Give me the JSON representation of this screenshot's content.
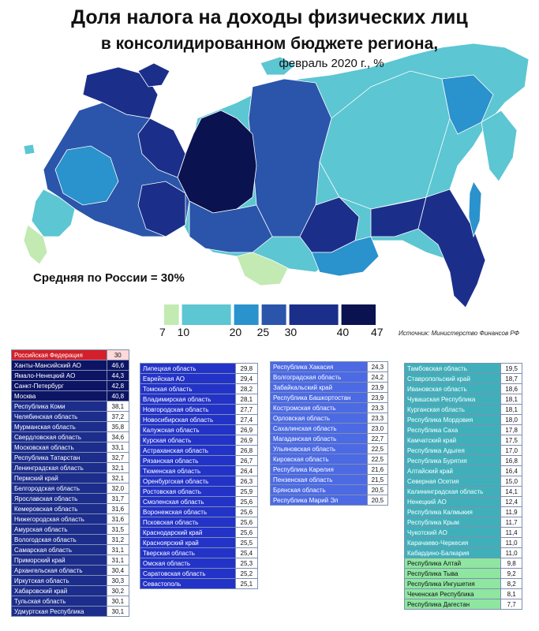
{
  "title": {
    "line1": "Доля налога на доходы физических лиц",
    "line2": "в консолидированном бюджете региона,",
    "line3": "февраль 2020 г., %"
  },
  "average_label": "Средняя по России = 30%",
  "source": "Источник: Министерство Финансов РФ",
  "legend": {
    "bins": [
      {
        "from": 7,
        "to": 10,
        "color": "#c2eab2"
      },
      {
        "from": 10,
        "to": 20,
        "color": "#5cc6d2"
      },
      {
        "from": 20,
        "to": 25,
        "color": "#2a92cc"
      },
      {
        "from": 25,
        "to": 30,
        "color": "#2a55aa"
      },
      {
        "from": 30,
        "to": 40,
        "color": "#1b2f8a"
      },
      {
        "from": 40,
        "to": 47,
        "color": "#0b1250"
      }
    ],
    "labels": [
      "7",
      "10",
      "20",
      "25",
      "30",
      "40",
      "47"
    ]
  },
  "map_colors": {
    "land_light": "#c2eab2",
    "land_mid": "#5cc6d2",
    "land_blue": "#2a92cc",
    "land_steel": "#2a55aa",
    "land_dark": "#1b2f8a",
    "land_darkest": "#0b1250"
  },
  "tables": [
    {
      "header": {
        "name": "Российская Федерация",
        "value": "30"
      },
      "rows": [
        {
          "name": "Ханты-Мансийский АО",
          "value": "46,6",
          "cls": "r-a"
        },
        {
          "name": "Ямало-Ненецкий АО",
          "value": "44,3",
          "cls": "r-a"
        },
        {
          "name": "Санкт-Петербург",
          "value": "42,8",
          "cls": "r-a"
        },
        {
          "name": "Москва",
          "value": "40,8",
          "cls": "r-a"
        },
        {
          "name": "Республика Коми",
          "value": "38,1",
          "cls": "r-b"
        },
        {
          "name": "Челябинская область",
          "value": "37,2",
          "cls": "r-b"
        },
        {
          "name": "Мурманская область",
          "value": "35,8",
          "cls": "r-b"
        },
        {
          "name": "Свердловская область",
          "value": "34,6",
          "cls": "r-b"
        },
        {
          "name": "Московская область",
          "value": "33,1",
          "cls": "r-b"
        },
        {
          "name": "Республика Татарстан",
          "value": "32,7",
          "cls": "r-b"
        },
        {
          "name": "Ленинградская область",
          "value": "32,1",
          "cls": "r-b"
        },
        {
          "name": "Пермский край",
          "value": "32,1",
          "cls": "r-b"
        },
        {
          "name": "Белгородская область",
          "value": "32,0",
          "cls": "r-b"
        },
        {
          "name": "Ярославская область",
          "value": "31,7",
          "cls": "r-b"
        },
        {
          "name": "Кемеровская область",
          "value": "31,6",
          "cls": "r-b"
        },
        {
          "name": "Нижегородская область",
          "value": "31,6",
          "cls": "r-b"
        },
        {
          "name": "Амурская область",
          "value": "31,5",
          "cls": "r-b"
        },
        {
          "name": "Вологодская область",
          "value": "31,2",
          "cls": "r-b"
        },
        {
          "name": "Самарская область",
          "value": "31,1",
          "cls": "r-b"
        },
        {
          "name": "Приморский край",
          "value": "31,1",
          "cls": "r-b"
        },
        {
          "name": "Архангельская область",
          "value": "30,4",
          "cls": "r-b"
        },
        {
          "name": "Иркутская область",
          "value": "30,3",
          "cls": "r-b"
        },
        {
          "name": "Хабаровский край",
          "value": "30,2",
          "cls": "r-b"
        },
        {
          "name": "Тульская область",
          "value": "30,1",
          "cls": "r-b"
        },
        {
          "name": "Удмуртская Республика",
          "value": "30,1",
          "cls": "r-b"
        }
      ]
    },
    {
      "rows": [
        {
          "name": "Липецкая область",
          "value": "29,8",
          "cls": "r-c"
        },
        {
          "name": "Еврейская АО",
          "value": "29,4",
          "cls": "r-c"
        },
        {
          "name": "Томская область",
          "value": "28,2",
          "cls": "r-c"
        },
        {
          "name": "Владимирская область",
          "value": "28,1",
          "cls": "r-c"
        },
        {
          "name": "Новгородская область",
          "value": "27,7",
          "cls": "r-c"
        },
        {
          "name": "Новосибирская область",
          "value": "27,4",
          "cls": "r-c"
        },
        {
          "name": "Калужская область",
          "value": "26,9",
          "cls": "r-c"
        },
        {
          "name": "Курская область",
          "value": "26,9",
          "cls": "r-c"
        },
        {
          "name": "Астраханская область",
          "value": "26,8",
          "cls": "r-c"
        },
        {
          "name": "Рязанская область",
          "value": "26,7",
          "cls": "r-c"
        },
        {
          "name": "Тюменская область",
          "value": "26,4",
          "cls": "r-c"
        },
        {
          "name": "Оренбургская область",
          "value": "26,3",
          "cls": "r-c"
        },
        {
          "name": "Ростовская область",
          "value": "25,9",
          "cls": "r-c"
        },
        {
          "name": "Смоленская область",
          "value": "25,6",
          "cls": "r-c"
        },
        {
          "name": "Воронежская область",
          "value": "25,6",
          "cls": "r-c"
        },
        {
          "name": "Псковская область",
          "value": "25,6",
          "cls": "r-c"
        },
        {
          "name": "Краснодарский край",
          "value": "25,6",
          "cls": "r-c"
        },
        {
          "name": "Красноярский край",
          "value": "25,5",
          "cls": "r-c"
        },
        {
          "name": "Тверская область",
          "value": "25,4",
          "cls": "r-c"
        },
        {
          "name": "Омская область",
          "value": "25,3",
          "cls": "r-c"
        },
        {
          "name": "Саратовская область",
          "value": "25,2",
          "cls": "r-c"
        },
        {
          "name": "Севастополь",
          "value": "25,1",
          "cls": "r-c"
        }
      ]
    },
    {
      "rows": [
        {
          "name": "Республика Хакасия",
          "value": "24,3",
          "cls": "r-d"
        },
        {
          "name": "Волгоградская область",
          "value": "24,2",
          "cls": "r-d"
        },
        {
          "name": "Забайкальский край",
          "value": "23,9",
          "cls": "r-d"
        },
        {
          "name": "Республика Башкортостан",
          "value": "23,9",
          "cls": "r-d"
        },
        {
          "name": "Костромская область",
          "value": "23,3",
          "cls": "r-d"
        },
        {
          "name": "Орловская область",
          "value": "23,3",
          "cls": "r-d"
        },
        {
          "name": "Сахалинская область",
          "value": "23,0",
          "cls": "r-d"
        },
        {
          "name": "Магаданская область",
          "value": "22,7",
          "cls": "r-d"
        },
        {
          "name": "Ульяновская область",
          "value": "22,5",
          "cls": "r-d"
        },
        {
          "name": "Кировская область",
          "value": "22,5",
          "cls": "r-d"
        },
        {
          "name": "Республика Карелия",
          "value": "21,6",
          "cls": "r-d"
        },
        {
          "name": "Пензенская область",
          "value": "21,5",
          "cls": "r-d"
        },
        {
          "name": "Брянская область",
          "value": "20,5",
          "cls": "r-d"
        },
        {
          "name": "Республика Марий Эл",
          "value": "20,5",
          "cls": "r-d"
        }
      ]
    },
    {
      "rows": [
        {
          "name": "Тамбовская область",
          "value": "19,5",
          "cls": "r-e"
        },
        {
          "name": "Ставропольский край",
          "value": "18,7",
          "cls": "r-e"
        },
        {
          "name": "Ивановская область",
          "value": "18,6",
          "cls": "r-e"
        },
        {
          "name": "Чувашская Республика",
          "value": "18,1",
          "cls": "r-e"
        },
        {
          "name": "Курганская область",
          "value": "18,1",
          "cls": "r-e"
        },
        {
          "name": "Республика Мордовия",
          "value": "18,0",
          "cls": "r-e"
        },
        {
          "name": "Республика Саха",
          "value": "17,8",
          "cls": "r-e"
        },
        {
          "name": "Камчатский край",
          "value": "17,5",
          "cls": "r-e"
        },
        {
          "name": "Республика Адыгея",
          "value": "17,0",
          "cls": "r-e"
        },
        {
          "name": "Республика Бурятия",
          "value": "16,8",
          "cls": "r-e"
        },
        {
          "name": "Алтайский край",
          "value": "16,4",
          "cls": "r-e"
        },
        {
          "name": "Северная Осетия",
          "value": "15,0",
          "cls": "r-e"
        },
        {
          "name": "Калининградская область",
          "value": "14,1",
          "cls": "r-e"
        },
        {
          "name": "Ненецкий АО",
          "value": "12,4",
          "cls": "r-e"
        },
        {
          "name": "Республика Калмыкия",
          "value": "11,9",
          "cls": "r-e"
        },
        {
          "name": "Республика Крым",
          "value": "11,7",
          "cls": "r-e"
        },
        {
          "name": "Чукотский АО",
          "value": "11,4",
          "cls": "r-e"
        },
        {
          "name": "Карачаево-Черкесия",
          "value": "11,0",
          "cls": "r-e"
        },
        {
          "name": "Кабардино-Балкария",
          "value": "11,0",
          "cls": "r-e"
        },
        {
          "name": "Республика Алтай",
          "value": "9,8",
          "cls": "r-f"
        },
        {
          "name": "Республика Тыва",
          "value": "9,2",
          "cls": "r-f"
        },
        {
          "name": "Республика Ингушетия",
          "value": "8,2",
          "cls": "r-f"
        },
        {
          "name": "Чеченская Республика",
          "value": "8,1",
          "cls": "r-f"
        },
        {
          "name": "Республика Дагестан",
          "value": "7,7",
          "cls": "r-f"
        }
      ]
    }
  ]
}
